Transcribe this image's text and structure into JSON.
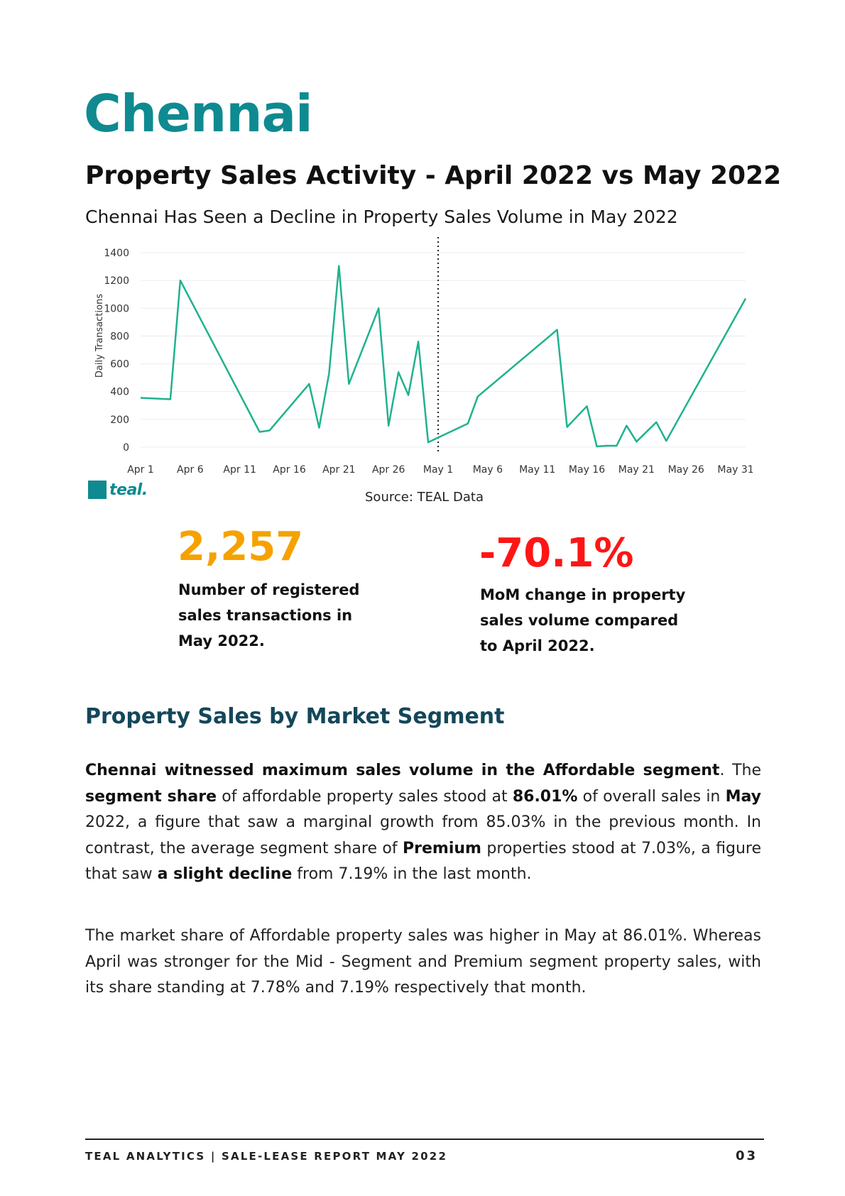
{
  "page": {
    "city": "Chennai",
    "title": "Property Sales Activity - April 2022 vs May 2022",
    "subtitle": "Chennai Has Seen a Decline in Property Sales Volume in May 2022",
    "source": "Source: TEAL Data",
    "logo_text": "teal."
  },
  "chart_data": {
    "type": "line",
    "ylabel": "Daily Transactions",
    "ylim": [
      0,
      1400
    ],
    "yticks": [
      0,
      200,
      400,
      600,
      800,
      1000,
      1200,
      1400
    ],
    "xtick_labels": [
      "Apr 1",
      "Apr 6",
      "Apr 11",
      "Apr 16",
      "Apr 21",
      "Apr 26",
      "May 1",
      "May 6",
      "May 11",
      "May 16",
      "May 21",
      "May 26",
      "May 31"
    ],
    "xtick_days": [
      1,
      6,
      11,
      16,
      21,
      26,
      31,
      36,
      41,
      46,
      51,
      56,
      61
    ],
    "divider_day": 31,
    "line_color": "#1fb28e",
    "grid": true,
    "series": [
      {
        "points": [
          [
            1,
            355
          ],
          [
            4,
            345
          ],
          [
            5,
            1200
          ],
          [
            13,
            110
          ],
          [
            14,
            120
          ],
          [
            18,
            455
          ],
          [
            19,
            140
          ],
          [
            20,
            530
          ],
          [
            21,
            1305
          ],
          [
            22,
            455
          ],
          [
            25,
            1000
          ],
          [
            26,
            155
          ],
          [
            27,
            540
          ],
          [
            28,
            375
          ],
          [
            29,
            760
          ],
          [
            30,
            35
          ],
          [
            34,
            170
          ],
          [
            35,
            365
          ],
          [
            43,
            845
          ],
          [
            44,
            145
          ],
          [
            46,
            295
          ],
          [
            47,
            5
          ],
          [
            48,
            10
          ],
          [
            49,
            10
          ],
          [
            50,
            155
          ],
          [
            51,
            40
          ],
          [
            53,
            180
          ],
          [
            54,
            45
          ],
          [
            62,
            1070
          ]
        ]
      }
    ]
  },
  "stats": [
    {
      "value": "2,257",
      "description": "Number of registered\nsales transactions in\n May 2022.",
      "color": "#f5a200"
    },
    {
      "value": "-70.1%",
      "description": "MoM change in property\nsales volume compared\nto April 2022.",
      "color": "#ff1515"
    }
  ],
  "segment": {
    "heading": "Property Sales by Market Segment",
    "p1": {
      "s1": "Chennai witnessed maximum sales volume in the Affordable segment",
      "s2": ". The ",
      "s3": "segment  share",
      "s4": " of affordable property sales stood at ",
      "s5": "86.01%",
      "s6": " of overall sales in ",
      "s7": "May",
      "s8": " 2022, a figure that saw a marginal growth from 85.03% in the previous month. In contrast, the average segment share of ",
      "s9": "Premium",
      "s10": " properties stood at 7.03%, a figure that saw ",
      "s11": "a slight decline",
      "s12": " from 7.19% in the last month."
    },
    "p2": "The market share of Affordable property sales was higher in May at 86.01%. Whereas April was stronger for the Mid - Segment and Premium segment property sales, with its share standing at 7.78% and 7.19% respectively that month."
  },
  "footer": {
    "left": "TEAL ANALYTICS | SALE-LEASE REPORT MAY 2022",
    "page_number": "03"
  }
}
